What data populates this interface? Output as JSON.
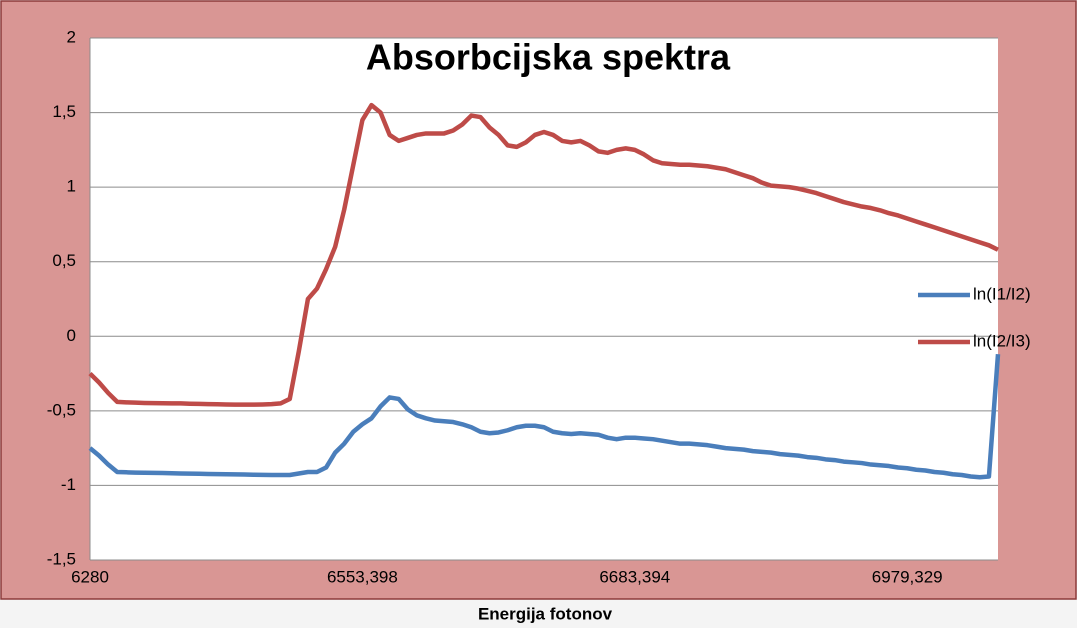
{
  "chart_data": {
    "type": "line",
    "title": "Absorbcijska spektra",
    "xlabel": "Energija fotonov",
    "categories": [
      "6280",
      null,
      null,
      null,
      null,
      null,
      null,
      null,
      null,
      null,
      null,
      null,
      null,
      null,
      null,
      null,
      null,
      null,
      null,
      null,
      null,
      null,
      null,
      null,
      null,
      null,
      null,
      null,
      null,
      null,
      "6553,398",
      null,
      null,
      null,
      null,
      null,
      null,
      null,
      null,
      null,
      null,
      null,
      null,
      null,
      null,
      null,
      null,
      null,
      null,
      null,
      null,
      null,
      null,
      null,
      null,
      null,
      null,
      null,
      null,
      null,
      "6683,394",
      null,
      null,
      null,
      null,
      null,
      null,
      null,
      null,
      null,
      null,
      null,
      null,
      null,
      null,
      null,
      null,
      null,
      null,
      null,
      null,
      null,
      null,
      null,
      null,
      null,
      null,
      null,
      null,
      null,
      "6979,329",
      null,
      null,
      null,
      null,
      null,
      null,
      null,
      null,
      null,
      null
    ],
    "series": [
      {
        "name": "ln(I1/I2)",
        "color": "#4a7ebb",
        "values": [
          -0.75,
          -0.8,
          -0.86,
          -0.91,
          -0.912,
          -0.914,
          -0.915,
          -0.916,
          -0.917,
          -0.918,
          -0.92,
          -0.921,
          -0.922,
          -0.923,
          -0.924,
          -0.925,
          -0.926,
          -0.927,
          -0.928,
          -0.929,
          -0.93,
          -0.93,
          -0.93,
          -0.92,
          -0.91,
          -0.91,
          -0.88,
          -0.78,
          -0.72,
          -0.64,
          -0.59,
          -0.55,
          -0.47,
          -0.41,
          -0.42,
          -0.49,
          -0.53,
          -0.55,
          -0.565,
          -0.57,
          -0.575,
          -0.59,
          -0.61,
          -0.64,
          -0.65,
          -0.645,
          -0.63,
          -0.61,
          -0.6,
          -0.6,
          -0.61,
          -0.64,
          -0.65,
          -0.655,
          -0.65,
          -0.655,
          -0.66,
          -0.68,
          -0.69,
          -0.68,
          -0.68,
          -0.685,
          -0.69,
          -0.7,
          -0.71,
          -0.72,
          -0.72,
          -0.725,
          -0.73,
          -0.74,
          -0.75,
          -0.755,
          -0.76,
          -0.77,
          -0.775,
          -0.78,
          -0.79,
          -0.795,
          -0.8,
          -0.81,
          -0.815,
          -0.825,
          -0.83,
          -0.84,
          -0.845,
          -0.85,
          -0.86,
          -0.865,
          -0.87,
          -0.88,
          -0.885,
          -0.895,
          -0.9,
          -0.91,
          -0.915,
          -0.925,
          -0.93,
          -0.94,
          -0.945,
          -0.94,
          -0.12
        ]
      },
      {
        "name": "ln(I2/I3)",
        "color": "#be4b48",
        "values": [
          -0.25,
          -0.31,
          -0.38,
          -0.44,
          -0.443,
          -0.445,
          -0.447,
          -0.448,
          -0.449,
          -0.45,
          -0.45,
          -0.452,
          -0.453,
          -0.455,
          -0.456,
          -0.457,
          -0.458,
          -0.458,
          -0.458,
          -0.457,
          -0.455,
          -0.45,
          -0.42,
          -0.1,
          0.25,
          0.32,
          0.45,
          0.6,
          0.85,
          1.15,
          1.45,
          1.55,
          1.5,
          1.35,
          1.31,
          1.33,
          1.35,
          1.36,
          1.36,
          1.36,
          1.38,
          1.42,
          1.48,
          1.47,
          1.4,
          1.35,
          1.28,
          1.27,
          1.3,
          1.35,
          1.37,
          1.35,
          1.31,
          1.3,
          1.31,
          1.28,
          1.24,
          1.23,
          1.25,
          1.26,
          1.25,
          1.22,
          1.18,
          1.16,
          1.155,
          1.15,
          1.15,
          1.145,
          1.14,
          1.13,
          1.12,
          1.1,
          1.08,
          1.06,
          1.03,
          1.01,
          1.005,
          1.0,
          0.99,
          0.975,
          0.96,
          0.94,
          0.92,
          0.9,
          0.885,
          0.87,
          0.86,
          0.845,
          0.825,
          0.81,
          0.79,
          0.77,
          0.75,
          0.73,
          0.71,
          0.69,
          0.67,
          0.65,
          0.63,
          0.61,
          0.58
        ]
      }
    ],
    "ylim": [
      -1.5,
      2
    ],
    "yticks": [
      {
        "value": -1.5,
        "label": "-1,5"
      },
      -1,
      {
        "value": -0.5,
        "label": "-0,5"
      },
      0,
      {
        "value": 0.5,
        "label": "0,5"
      },
      1,
      {
        "value": 1.5,
        "label": "1,5"
      },
      2
    ],
    "grid": true,
    "legend": "right"
  }
}
